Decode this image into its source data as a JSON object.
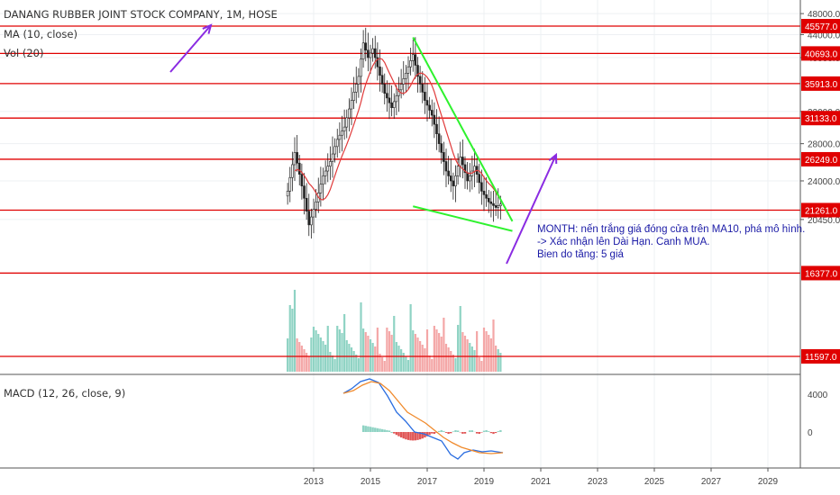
{
  "chart_data": {
    "type": "candlestick",
    "title": "DANANG RUBBER JOINT STOCK COMPANY, 1M, HOSE",
    "indicators": {
      "ma": "MA (10, close)",
      "vol": "Vol (20)",
      "macd": "MACD (12, 26, close, 9)"
    },
    "y_axis": {
      "ticks": [
        "48000.0",
        "44000.0",
        "40000.0",
        "32000.0",
        "28000.0",
        "24000.0",
        "20450.0"
      ],
      "tick_values": [
        48000,
        44000,
        40000,
        32000,
        28000,
        24000,
        20450
      ],
      "scale": "log"
    },
    "horizontal_levels": [
      45577.0,
      40693.0,
      35913.0,
      31133.0,
      26249.0,
      21261.0,
      16377.0,
      11597.0
    ],
    "horizontal_level_labels": [
      "45577.0",
      "40693.0",
      "35913.0",
      "31133.0",
      "26249.0",
      "21261.0",
      "16377.0",
      "11597.0"
    ],
    "x_axis": {
      "ticks": [
        "2013",
        "2015",
        "2017",
        "2019",
        "2021",
        "2023",
        "2025",
        "2027",
        "2029"
      ]
    },
    "macd_axis": {
      "ticks": [
        "4000",
        "0"
      ],
      "tick_values": [
        4000,
        0
      ]
    },
    "trendlines": [
      {
        "type": "resistance",
        "start": {
          "date": "2016-07",
          "price": 43500
        },
        "end": {
          "date": "2020-01",
          "price": 20300
        }
      },
      {
        "type": "support",
        "start": {
          "date": "2016-07",
          "price": 21600
        },
        "end": {
          "date": "2020-01",
          "price": 19500
        }
      }
    ],
    "price_approx": [
      [
        "2012-02",
        23000
      ],
      [
        "2012-05",
        27000
      ],
      [
        "2012-08",
        23500
      ],
      [
        "2012-11",
        20000
      ],
      [
        "2013-02",
        22000
      ],
      [
        "2013-05",
        24500
      ],
      [
        "2013-08",
        26000
      ],
      [
        "2013-11",
        28500
      ],
      [
        "2014-02",
        30000
      ],
      [
        "2014-05",
        33500
      ],
      [
        "2014-08",
        37000
      ],
      [
        "2014-10",
        42500
      ],
      [
        "2014-12",
        40000
      ],
      [
        "2015-02",
        41500
      ],
      [
        "2015-04",
        38500
      ],
      [
        "2015-07",
        34500
      ],
      [
        "2015-10",
        32500
      ],
      [
        "2016-01",
        35000
      ],
      [
        "2016-04",
        37500
      ],
      [
        "2016-07",
        40500
      ],
      [
        "2016-09",
        37000
      ],
      [
        "2016-12",
        33500
      ],
      [
        "2017-03",
        31500
      ],
      [
        "2017-06",
        28000
      ],
      [
        "2017-09",
        25000
      ],
      [
        "2017-12",
        23500
      ],
      [
        "2018-03",
        26500
      ],
      [
        "2018-06",
        24000
      ],
      [
        "2018-09",
        25500
      ],
      [
        "2018-12",
        23000
      ],
      [
        "2019-03",
        22000
      ],
      [
        "2019-06",
        21500
      ],
      [
        "2019-08",
        21800
      ]
    ],
    "annotation": [
      "MONTH: nến trắng giá đóng cửa trên MA10, phá mô hình.",
      "-> Xác nhận lên Dài Hạn. Canh MUA.",
      "Bien do tăng: 5 giá"
    ],
    "colors": {
      "level_line": "#e00000",
      "trendline": "#2ef22e",
      "arrow": "#8a2be2",
      "ma": "#e03a3a",
      "macd": "#2a6de0",
      "signal": "#f08a2c",
      "vol_up": "#8fd3c4",
      "vol_down": "#f4a7a7",
      "annotation": "#1a1aa6"
    }
  }
}
